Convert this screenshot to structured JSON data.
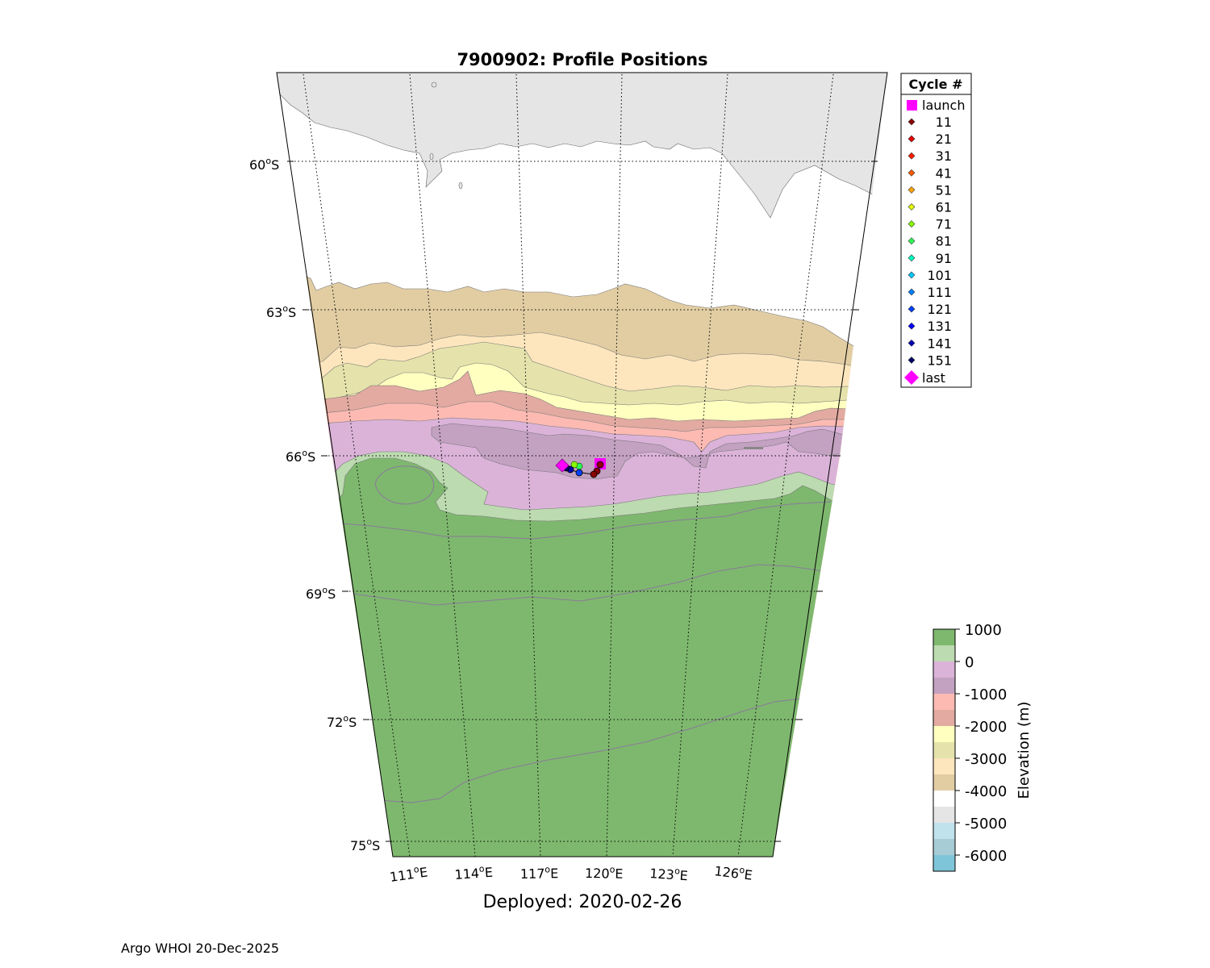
{
  "title": "7900902: Profile Positions",
  "subtitle": "Deployed: 2020-02-26",
  "footer": "Argo WHOI 20-Dec-2025",
  "latitude_labels": [
    {
      "deg": "60",
      "hemi": "S"
    },
    {
      "deg": "63",
      "hemi": "S"
    },
    {
      "deg": "66",
      "hemi": "S"
    },
    {
      "deg": "69",
      "hemi": "S"
    },
    {
      "deg": "72",
      "hemi": "S"
    },
    {
      "deg": "75",
      "hemi": "S"
    }
  ],
  "longitude_labels": [
    {
      "deg": "111",
      "hemi": "E"
    },
    {
      "deg": "114",
      "hemi": "E"
    },
    {
      "deg": "117",
      "hemi": "E"
    },
    {
      "deg": "120",
      "hemi": "E"
    },
    {
      "deg": "123",
      "hemi": "E"
    },
    {
      "deg": "126",
      "hemi": "E"
    }
  ],
  "legend": {
    "title": "Cycle #",
    "launch_label": "launch",
    "last_label": "last",
    "launch_color": "#ff00ff",
    "last_color": "#ff00ff",
    "cycles": [
      {
        "label": "11",
        "color": "#8b0000"
      },
      {
        "label": "21",
        "color": "#e00000"
      },
      {
        "label": "31",
        "color": "#ff1a00"
      },
      {
        "label": "41",
        "color": "#ff5a00"
      },
      {
        "label": "51",
        "color": "#ffa500"
      },
      {
        "label": "61",
        "color": "#e6ff00"
      },
      {
        "label": "71",
        "color": "#88ff00"
      },
      {
        "label": "81",
        "color": "#2dff55"
      },
      {
        "label": "91",
        "color": "#00ffbf"
      },
      {
        "label": "101",
        "color": "#00c8ff"
      },
      {
        "label": "111",
        "color": "#0080ff"
      },
      {
        "label": "121",
        "color": "#0040ff"
      },
      {
        "label": "131",
        "color": "#0000ff"
      },
      {
        "label": "141",
        "color": "#0000b4"
      },
      {
        "label": "151",
        "color": "#000060"
      }
    ]
  },
  "colorbar": {
    "label": "Elevation (m)",
    "tick_labels": [
      "1000",
      "0",
      "-1000",
      "-2000",
      "-3000",
      "-4000",
      "-5000",
      "-6000"
    ],
    "colors": [
      "#7eb86e",
      "#bcdbb0",
      "#dbb3d9",
      "#c3a1c1",
      "#fdbab3",
      "#e2aaa1",
      "#ffffbf",
      "#e5e3ab",
      "#fde6bd",
      "#e2cda3",
      "#ffffff",
      "#e5e5e5",
      "#c0e2ec",
      "#a7ccd5",
      "#7ec5d9"
    ]
  },
  "depth_colors": {
    "land": "#7eb86e",
    "land_fringe": "#bcdbb0",
    "shelf": "#dbb3d9",
    "deep_shelf": "#c3a1c1",
    "slope_1000": "#fdbab3",
    "slope_1500": "#e2aaa1",
    "slope_2000": "#ffffbf",
    "slope_2500": "#e5e3ab",
    "slope_3000": "#fde6bd",
    "slope_3500": "#e2cda3",
    "abyss_4000": "#ffffff",
    "abyss_4500": "#e5e5e5"
  }
}
